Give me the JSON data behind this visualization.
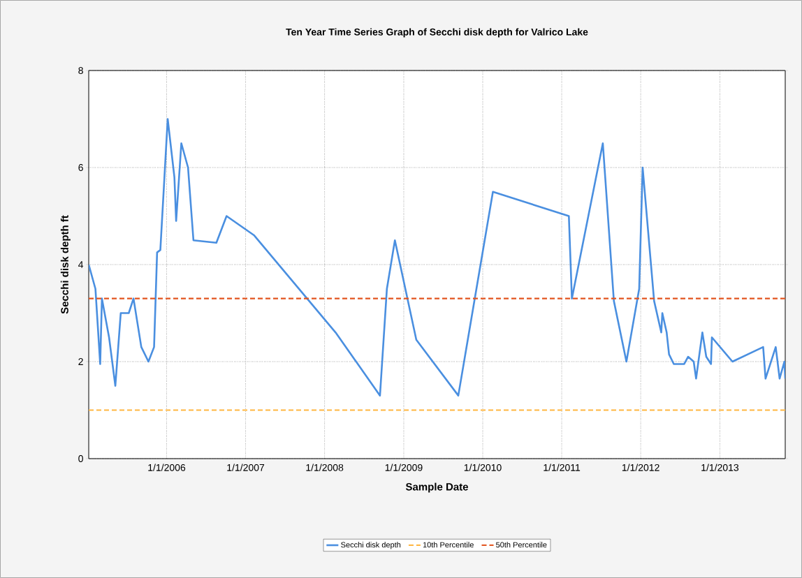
{
  "chart_data": {
    "type": "line",
    "title": "Ten Year Time Series Graph of Secchi disk depth for Valrico Lake",
    "xlabel": "Sample Date",
    "ylabel": "Secchi disk depth ft",
    "x": [
      "2005-01-06",
      "2005-02-06",
      "2005-02-28",
      "2005-03-08",
      "2005-04-10",
      "2005-05-09",
      "2005-06-03",
      "2005-07-10",
      "2005-08-01",
      "2005-09-06",
      "2005-10-09",
      "2005-11-04",
      "2005-11-18",
      "2005-12-03",
      "2006-01-06",
      "2006-02-06",
      "2006-02-14",
      "2006-03-10",
      "2006-04-10",
      "2006-05-05",
      "2006-08-19",
      "2006-10-05",
      "2007-02-10",
      "2008-02-21",
      "2008-09-13",
      "2008-10-15",
      "2008-11-21",
      "2009-02-28",
      "2009-09-10",
      "2010-02-17",
      "2011-02-03",
      "2011-02-17",
      "2011-07-10",
      "2011-08-30",
      "2011-10-27",
      "2011-12-25",
      "2012-01-10",
      "2012-03-03",
      "2012-04-05",
      "2012-04-10",
      "2012-04-30",
      "2012-05-11",
      "2012-06-02",
      "2012-07-20",
      "2012-08-07",
      "2012-09-02",
      "2012-09-13",
      "2012-10-12",
      "2012-10-30",
      "2012-11-21",
      "2012-11-25",
      "2013-02-28",
      "2013-07-20",
      "2013-07-31",
      "2013-09-16",
      "2013-10-04",
      "2013-10-26",
      "2013-10-30"
    ],
    "series": [
      {
        "name": "Secchi disk depth",
        "color": "#4a8fe0",
        "values": [
          4.0,
          3.5,
          1.95,
          3.3,
          2.5,
          1.5,
          3.0,
          3.0,
          3.3,
          2.3,
          2.0,
          2.3,
          4.25,
          4.3,
          7.0,
          5.8,
          4.9,
          6.5,
          6.0,
          4.5,
          4.45,
          5.0,
          4.6,
          2.6,
          1.3,
          3.5,
          4.5,
          2.45,
          1.3,
          5.5,
          5.0,
          3.3,
          6.5,
          3.25,
          2.0,
          3.5,
          6.0,
          3.25,
          2.6,
          3.0,
          2.6,
          2.15,
          1.95,
          1.95,
          2.1,
          2.0,
          1.65,
          2.6,
          2.1,
          1.95,
          2.5,
          2.0,
          2.3,
          1.65,
          2.3,
          1.65,
          2.0,
          1.65
        ]
      }
    ],
    "ref_lines": [
      {
        "axis": "y",
        "value": 1.0,
        "label": "10th Percentile",
        "color": "#ffb641",
        "line_style": "dashed"
      },
      {
        "axis": "y",
        "value": 3.3,
        "label": "50th Percentile",
        "color": "#e2541f",
        "line_style": "dashed"
      }
    ],
    "xlim": [
      "2005-01-06",
      "2013-10-30"
    ],
    "xticks": [
      {
        "value": "2006-01-01",
        "label": "1/1/2006"
      },
      {
        "value": "2007-01-01",
        "label": "1/1/2007"
      },
      {
        "value": "2008-01-01",
        "label": "1/1/2008"
      },
      {
        "value": "2009-01-01",
        "label": "1/1/2009"
      },
      {
        "value": "2010-01-01",
        "label": "1/1/2010"
      },
      {
        "value": "2011-01-01",
        "label": "1/1/2011"
      },
      {
        "value": "2012-01-01",
        "label": "1/1/2012"
      },
      {
        "value": "2013-01-01",
        "label": "1/1/2013"
      }
    ],
    "ylim": [
      0,
      8
    ],
    "yticks": [
      0,
      2,
      4,
      6,
      8
    ],
    "grid": true,
    "legend": "bottom"
  }
}
